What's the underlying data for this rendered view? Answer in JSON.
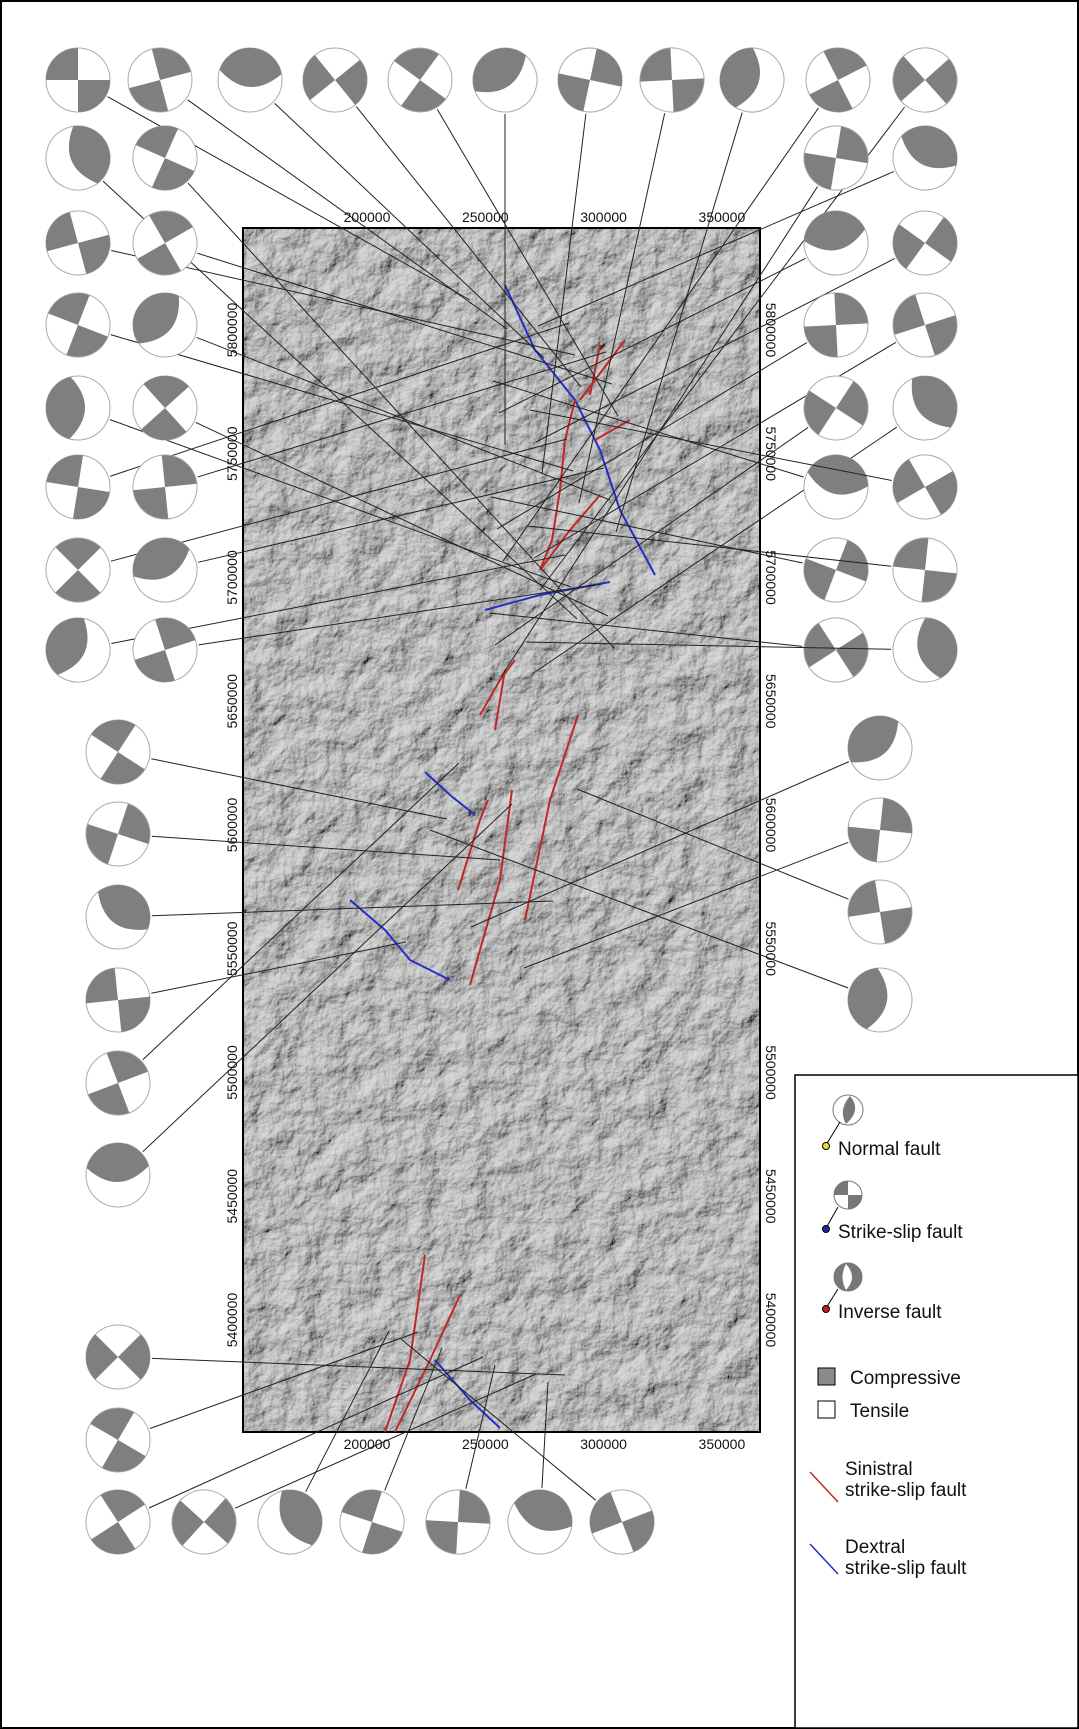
{
  "map": {
    "xticks": [
      "200000",
      "250000",
      "300000",
      "350000"
    ],
    "yticks": [
      "5800000",
      "5750000",
      "5700000",
      "5650000",
      "5600000",
      "5550000",
      "5500000",
      "5450000",
      "5400000"
    ],
    "legend": {
      "normal": "Normal fault",
      "strike_slip": "Strike-slip fault",
      "inverse": "Inverse fault",
      "compressive": "Compressive",
      "tensile": "Tensile",
      "sinistral": [
        "Sinistral",
        "strike-slip fault"
      ],
      "dextral": [
        "Dextral",
        "strike-slip fault"
      ]
    }
  }
}
